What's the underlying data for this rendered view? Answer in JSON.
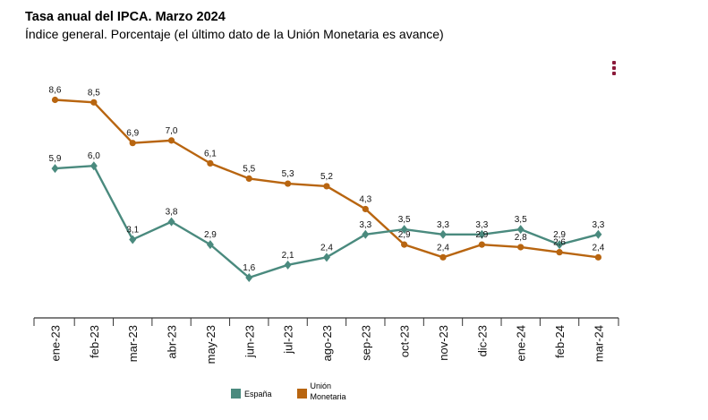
{
  "header": {
    "title": "Tasa anual del IPCA. Marzo 2024",
    "subtitle": "Índice general. Porcentaje (el último dato de la Unión Monetaria es avance)"
  },
  "menu": {
    "icon": "vertical-dots-menu-icon",
    "color": "#8b1a3a"
  },
  "chart_data": {
    "type": "line",
    "title": "Tasa anual del IPCA. Marzo 2024",
    "subtitle": "Índice general. Porcentaje (el último dato de la Unión Monetaria es avance)",
    "categories": [
      "ene-23",
      "feb-23",
      "mar-23",
      "abr-23",
      "may-23",
      "jun-23",
      "jul-23",
      "ago-23",
      "sep-23",
      "oct-23",
      "nov-23",
      "dic-23",
      "ene-24",
      "feb-24",
      "mar-24"
    ],
    "series": [
      {
        "name": "España",
        "color": "#4a8a7e",
        "marker": "diamond",
        "values": [
          5.9,
          6.0,
          3.1,
          3.8,
          2.9,
          1.6,
          2.1,
          2.4,
          3.3,
          3.5,
          3.3,
          3.3,
          3.5,
          2.9,
          3.3
        ],
        "labels": [
          "5,9",
          "6,0",
          "3,1",
          "3,8",
          "2,9",
          "1,6",
          "2,1",
          "2,4",
          "3,3",
          "3,5",
          "3,3",
          "3,3",
          "3,5",
          "2,9",
          "3,3"
        ]
      },
      {
        "name": "Unión Monetaria",
        "color": "#b86510",
        "marker": "circle",
        "values": [
          8.6,
          8.5,
          6.9,
          7.0,
          6.1,
          5.5,
          5.3,
          5.2,
          4.3,
          2.9,
          2.4,
          2.9,
          2.8,
          2.6,
          2.4
        ],
        "labels": [
          "8,6",
          "8,5",
          "6,9",
          "7,0",
          "6,1",
          "5,5",
          "5,3",
          "5,2",
          "4,3",
          "2,9",
          "2,4",
          "2,9",
          "2,8",
          "2,6",
          "2,4"
        ]
      }
    ],
    "ylim": [
      0,
      9.5
    ],
    "grid": false,
    "legend_position": "bottom-center"
  },
  "legend": {
    "items": [
      {
        "label": "España",
        "color": "#4a8a7e"
      },
      {
        "label": "Unión Monetaria",
        "color": "#b86510"
      }
    ]
  }
}
